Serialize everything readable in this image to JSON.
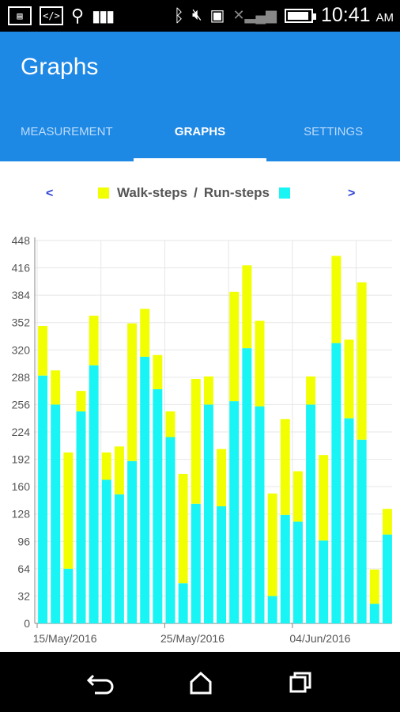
{
  "status_bar": {
    "time": "10:41",
    "ampm": "AM",
    "icons": [
      "image-icon",
      "code-icon",
      "usb-icon",
      "barcode-icon",
      "bluetooth-icon",
      "mute-icon",
      "sd-card-icon",
      "no-signal-icon",
      "battery-icon"
    ]
  },
  "appbar": {
    "title": "Graphs",
    "tabs": [
      {
        "label": "MEASUREMENT",
        "active": false
      },
      {
        "label": "GRAPHS",
        "active": true
      },
      {
        "label": "SETTINGS",
        "active": false
      }
    ]
  },
  "graph": {
    "prev_label": "<",
    "next_label": ">",
    "legend_walk": "Walk-steps",
    "legend_sep": "/",
    "legend_run": "Run-steps",
    "colors": {
      "walk": "#f2ff00",
      "run": "#19f4f4",
      "accent": "#1e88e5"
    }
  },
  "chart_data": {
    "type": "bar",
    "stacked": true,
    "ylim": [
      0,
      448
    ],
    "yticks": [
      0,
      32,
      64,
      96,
      128,
      160,
      192,
      224,
      256,
      288,
      320,
      352,
      384,
      416,
      448
    ],
    "x_labels": [
      {
        "label": "15/May/2016",
        "index": 0
      },
      {
        "label": "25/May/2016",
        "index": 10
      },
      {
        "label": "04/Jun/2016",
        "index": 20
      }
    ],
    "series": [
      {
        "name": "Run-steps",
        "color": "#19f4f4",
        "values": [
          290,
          256,
          64,
          248,
          302,
          168,
          151,
          190,
          312,
          274,
          218,
          47,
          140,
          256,
          137,
          260,
          322,
          254,
          32,
          127,
          119,
          256,
          97,
          328,
          240,
          215,
          23,
          104
        ]
      },
      {
        "name": "Walk-steps",
        "color": "#f2ff00",
        "values": [
          58,
          40,
          136,
          24,
          58,
          32,
          56,
          161,
          56,
          40,
          30,
          128,
          146,
          33,
          67,
          128,
          97,
          100,
          120,
          112,
          59,
          33,
          100,
          102,
          92,
          184,
          40,
          30
        ]
      }
    ]
  }
}
